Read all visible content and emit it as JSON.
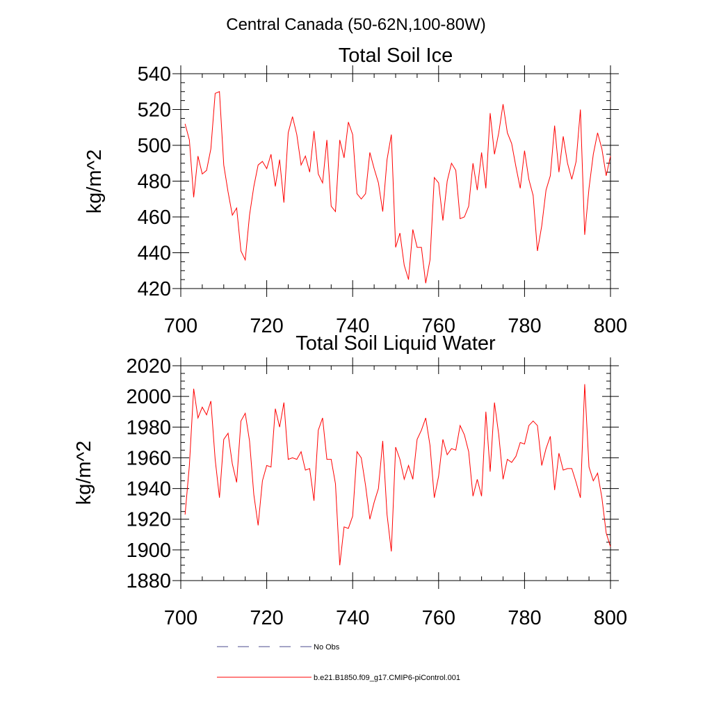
{
  "figure": {
    "title": "Central Canada (50-62N,100-80W)"
  },
  "legend": [
    {
      "label": "No Obs",
      "color": "#4a4a8c",
      "dash": true
    },
    {
      "label": "b.e21.B1850.f09_g17.CMIP6-piControl.001",
      "color": "#ff0000",
      "dash": false
    }
  ],
  "chart_data": [
    {
      "type": "line",
      "title": "Total Soil Ice",
      "xlabel": "",
      "ylabel": "kg/m^2",
      "xlim": [
        700,
        800
      ],
      "ylim": [
        420,
        540
      ],
      "x_ticks": [
        700,
        720,
        740,
        760,
        780,
        800
      ],
      "y_ticks": [
        420,
        440,
        460,
        480,
        500,
        520,
        540
      ],
      "series": [
        {
          "name": "b.e21.B1850.f09_g17.CMIP6-piControl.001",
          "color": "#ff0000",
          "x_start": 701,
          "x_step": 1,
          "values": [
            512,
            503,
            471,
            494,
            484,
            486,
            498,
            529,
            530,
            489,
            474,
            461,
            465,
            441,
            436,
            461,
            477,
            489,
            491,
            487,
            495,
            477,
            492,
            468,
            507,
            516,
            506,
            489,
            494,
            485,
            508,
            484,
            479,
            503,
            466,
            463,
            503,
            493,
            513,
            506,
            473,
            470,
            473,
            496,
            487,
            479,
            463,
            492,
            506,
            443,
            451,
            433,
            425,
            453,
            443,
            443,
            423,
            436,
            482,
            479,
            458,
            480,
            490,
            486,
            459,
            460,
            466,
            490,
            475,
            496,
            476,
            518,
            495,
            507,
            523,
            507,
            501,
            488,
            476,
            497,
            481,
            472,
            441,
            455,
            475,
            483,
            511,
            485,
            505,
            490,
            481,
            491,
            520,
            450,
            476,
            495,
            507,
            498,
            483,
            494
          ]
        }
      ]
    },
    {
      "type": "line",
      "title": "Total Soil Liquid Water",
      "xlabel": "",
      "ylabel": "kg/m^2",
      "xlim": [
        700,
        800
      ],
      "ylim": [
        1880,
        2020
      ],
      "x_ticks": [
        700,
        720,
        740,
        760,
        780,
        800
      ],
      "y_ticks": [
        1880,
        1900,
        1920,
        1940,
        1960,
        1980,
        2000,
        2020
      ],
      "series": [
        {
          "name": "b.e21.B1850.f09_g17.CMIP6-piControl.001",
          "color": "#ff0000",
          "x_start": 701,
          "x_step": 1,
          "values": [
            1923,
            1955,
            2005,
            1986,
            1993,
            1988,
            1997,
            1959,
            1934,
            1972,
            1976,
            1956,
            1944,
            1984,
            1989,
            1971,
            1936,
            1916,
            1945,
            1955,
            1954,
            1992,
            1980,
            1996,
            1959,
            1960,
            1959,
            1964,
            1952,
            1953,
            1932,
            1978,
            1986,
            1959,
            1959,
            1943,
            1890,
            1915,
            1914,
            1922,
            1964,
            1960,
            1942,
            1920,
            1931,
            1940,
            1971,
            1923,
            1899,
            1967,
            1959,
            1946,
            1955,
            1946,
            1972,
            1978,
            1986,
            1968,
            1934,
            1948,
            1972,
            1962,
            1966,
            1965,
            1981,
            1975,
            1964,
            1935,
            1946,
            1935,
            1990,
            1951,
            1996,
            1975,
            1946,
            1959,
            1957,
            1961,
            1970,
            1969,
            1981,
            1984,
            1981,
            1955,
            1966,
            1974,
            1939,
            1963,
            1952,
            1953,
            1953,
            1944,
            1934,
            2008,
            1954,
            1945,
            1950,
            1934,
            1911,
            1902
          ]
        }
      ]
    }
  ]
}
